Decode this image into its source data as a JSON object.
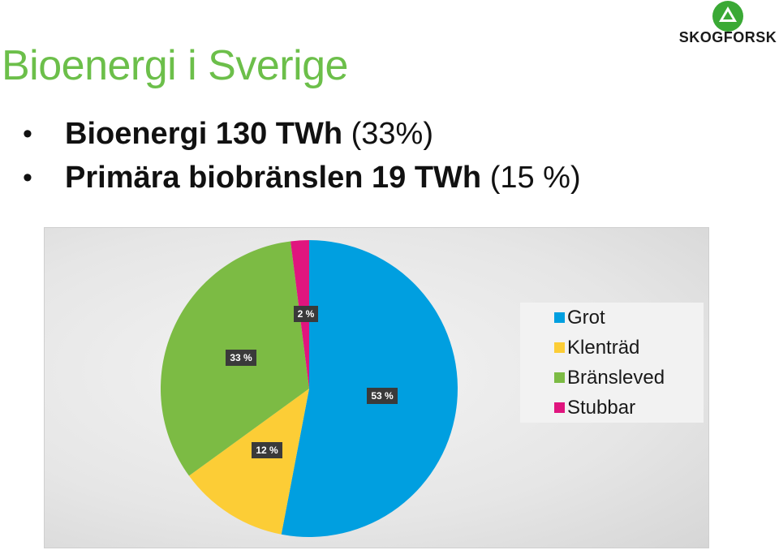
{
  "slide": {
    "title": "Bioenergi i Sverige",
    "title_color": "#6cbf4a",
    "bullets": [
      {
        "bold": "Bioenergi 130 TWh",
        "normal": " (33%)"
      },
      {
        "bold": "Primära biobränslen 19 TWh",
        "normal": " (15 %)"
      }
    ]
  },
  "logo": {
    "text": "SKOGFORSK",
    "icon": "triangle-logo-icon",
    "color": "#3aa935"
  },
  "chart_data": {
    "type": "pie",
    "title": "",
    "start_angle_deg": 0,
    "direction": "clockwise",
    "legend_position": "right",
    "slices": [
      {
        "name": "Grot",
        "value": 53,
        "label": "53 %",
        "color": "#009fe0"
      },
      {
        "name": "Klenträd",
        "value": 12,
        "label": "12 %",
        "color": "#fccd36"
      },
      {
        "name": "Bränsleved",
        "value": 33,
        "label": "33 %",
        "color": "#7cbb44"
      },
      {
        "name": "Stubbar",
        "value": 2,
        "label": "2 %",
        "color": "#e0157e"
      }
    ]
  }
}
